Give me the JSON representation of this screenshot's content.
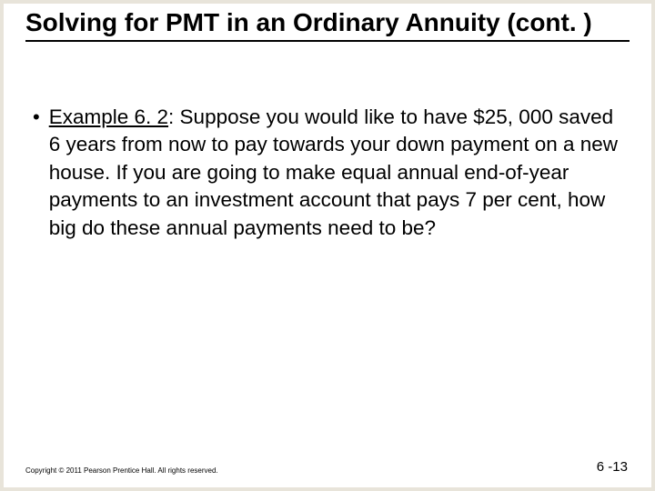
{
  "slide": {
    "background_color": "#ffffff",
    "outer_background": "#e8e4da",
    "title": "Solving for PMT in an Ordinary Annuity (cont. )",
    "title_fontsize": 28,
    "title_color": "#000000",
    "underline_color": "#000000",
    "bullet_char": "•",
    "example_label": "Example 6. 2",
    "example_sep": ": ",
    "example_body": "Suppose you would like to have $25, 000 saved 6 years from now to pay towards your down payment on a new house. If you are going to make equal annual end-of-year payments to an investment account that pays 7 per cent, how big do these annual payments need to be?",
    "body_fontsize": 22.5,
    "body_color": "#000000",
    "copyright": "Copyright © 2011 Pearson Prentice Hall. All rights reserved.",
    "copyright_fontsize": 8,
    "page_number": "6 -13",
    "page_number_fontsize": 15
  }
}
